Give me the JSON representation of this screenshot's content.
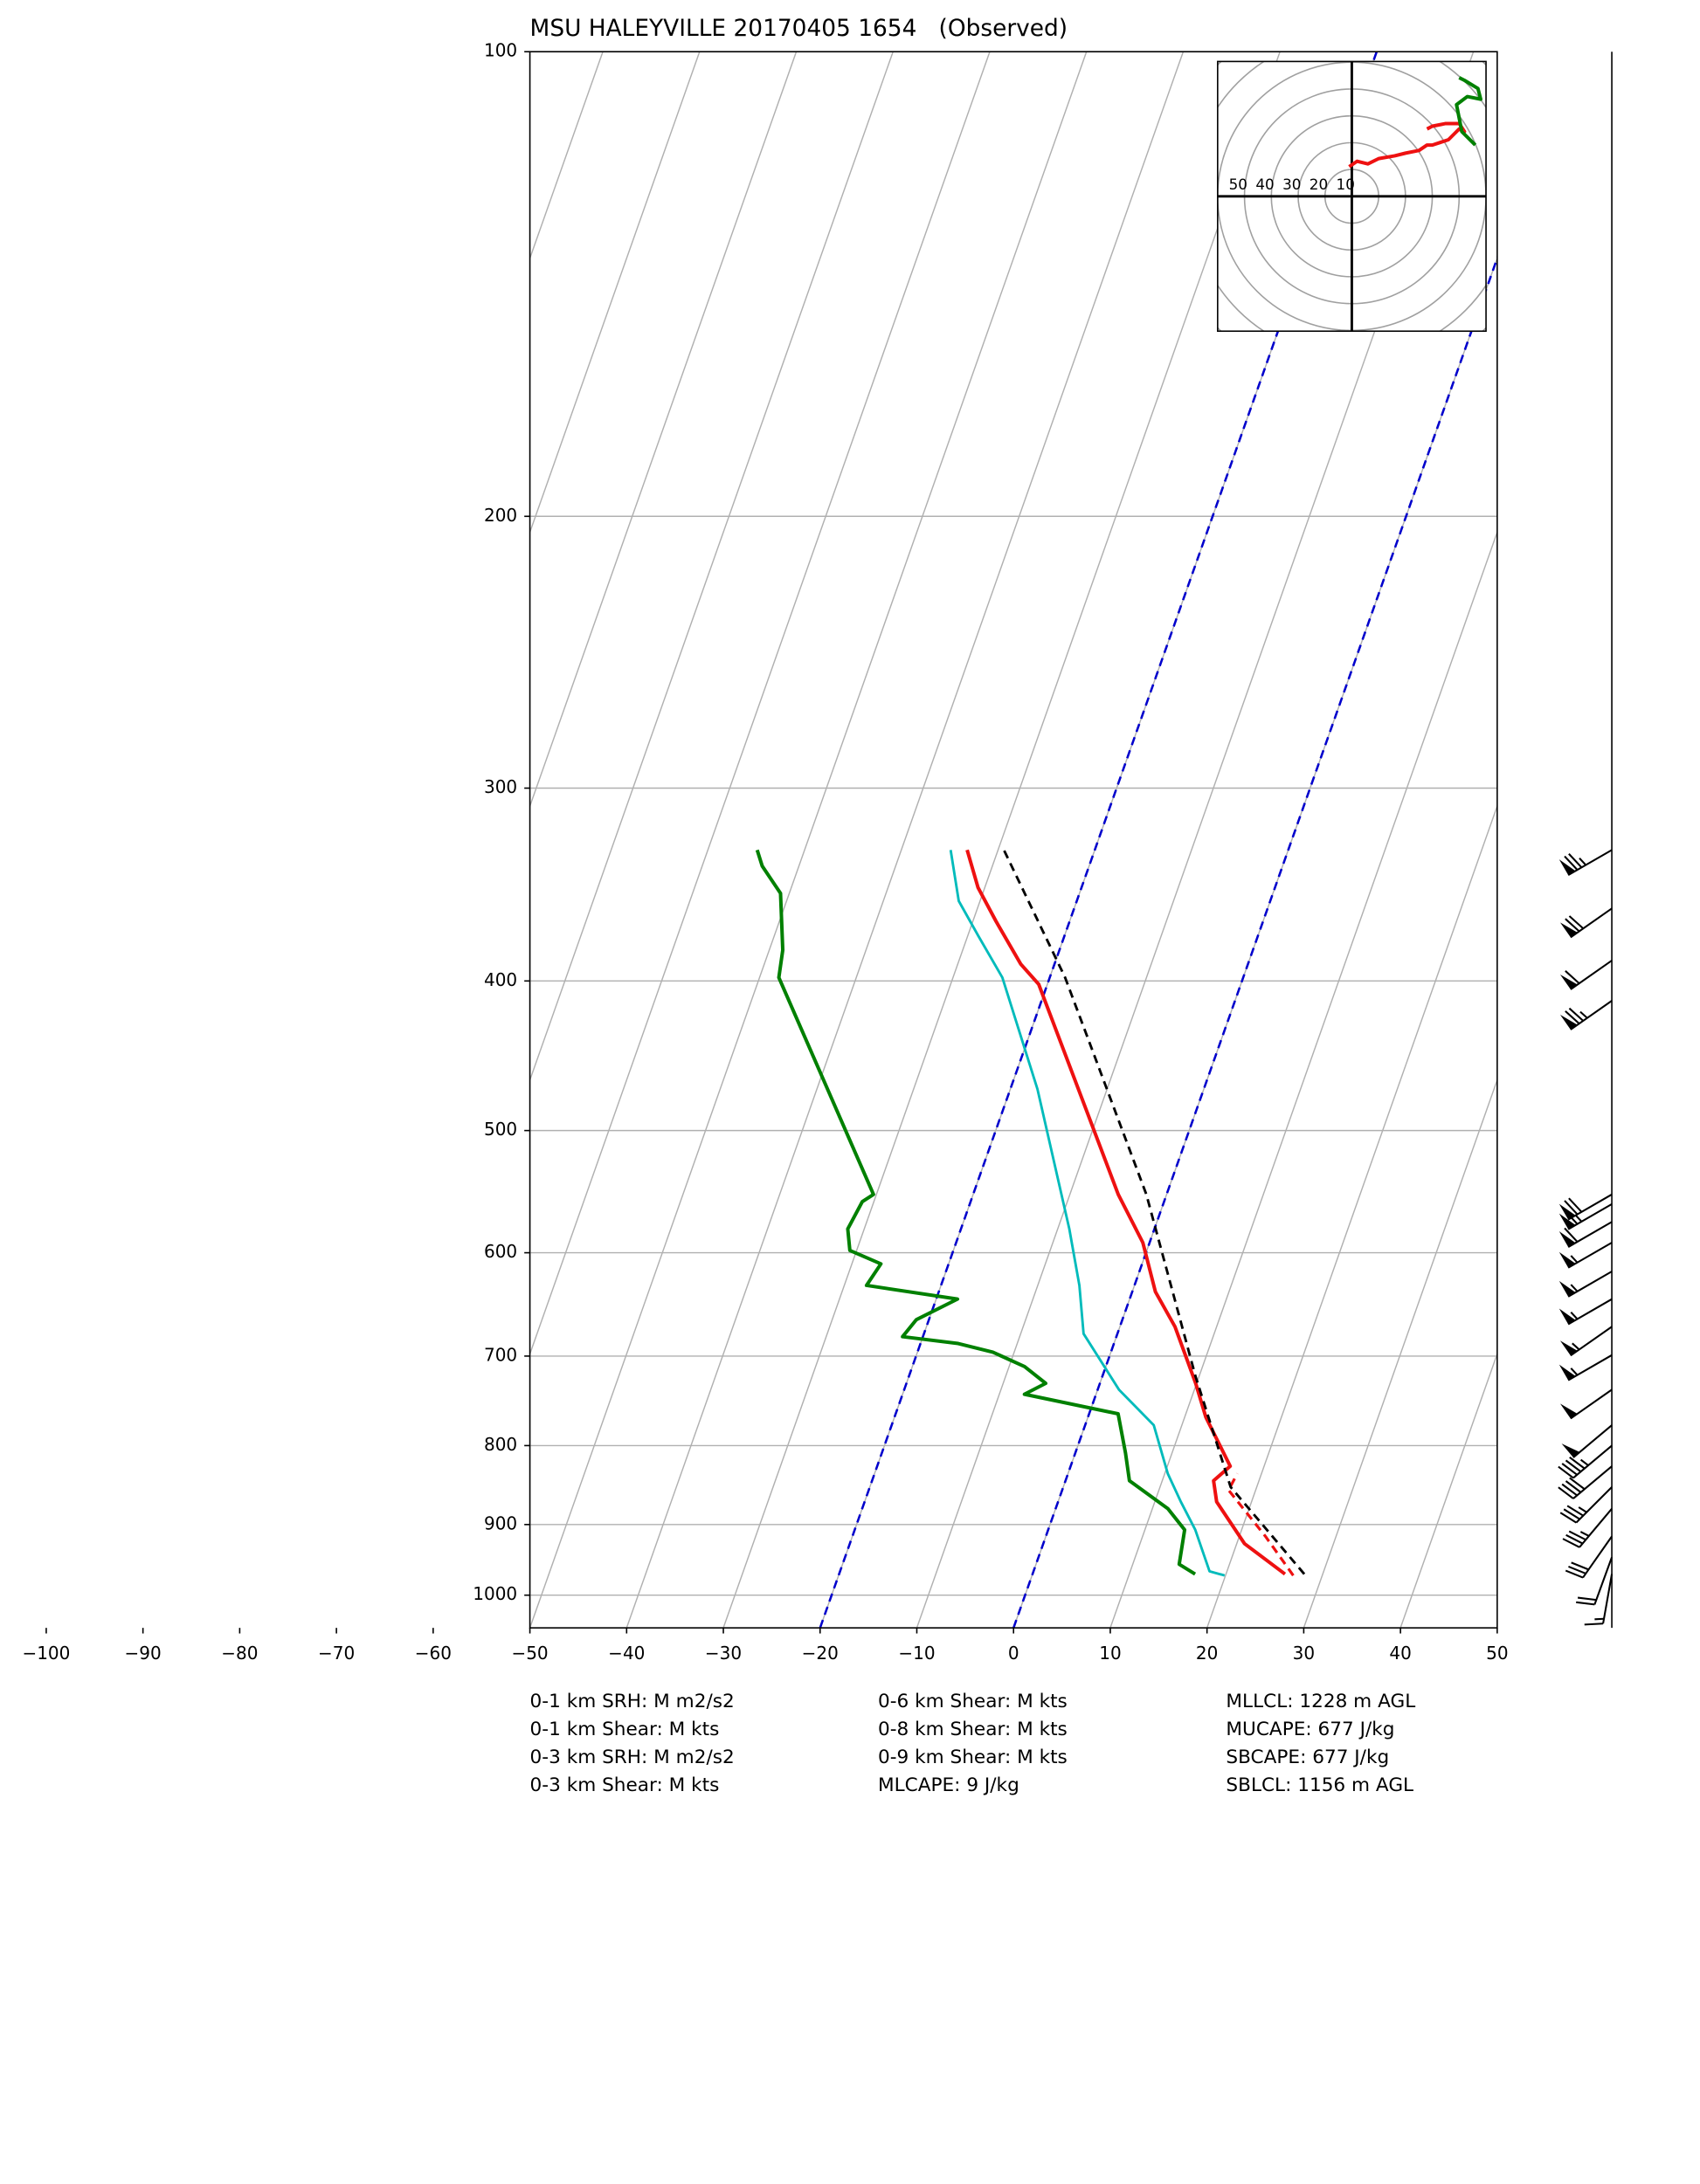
{
  "chart_data": {
    "type": "skewt",
    "title": "MSU HALEYVILLE 20170405 1654   (Observed)",
    "xlim": [
      -50,
      50
    ],
    "ylim": [
      1050,
      100
    ],
    "xticks": [
      {
        "value": -100,
        "label": "−100"
      },
      {
        "value": -90,
        "label": "−90"
      },
      {
        "value": -80,
        "label": "−80"
      },
      {
        "value": -70,
        "label": "−70"
      },
      {
        "value": -60,
        "label": "−60"
      },
      {
        "value": -50,
        "label": "−50"
      },
      {
        "value": -40,
        "label": "−40"
      },
      {
        "value": -30,
        "label": "−30"
      },
      {
        "value": -20,
        "label": "−20"
      },
      {
        "value": -10,
        "label": "−10"
      },
      0,
      10,
      20,
      30,
      40,
      50
    ],
    "yticks": [
      100,
      200,
      300,
      400,
      500,
      600,
      700,
      800,
      900,
      1000
    ],
    "grid": true,
    "highlight_isotherms": {
      "values": [
        -20,
        0
      ],
      "color": "#0000cc"
    },
    "profiles": [
      {
        "color": "#ee1111",
        "style": "solid",
        "width": 2.5,
        "pressure": [
          969,
          926,
          870,
          843,
          825,
          767,
          729,
          670,
          636,
          591,
          550,
          402,
          390,
          366,
          348,
          329
        ],
        "temperature": [
          26.1,
          20.8,
          16.4,
          15.3,
          16.5,
          12.2,
          9.9,
          5.7,
          2.4,
          -0.7,
          -5.0,
          -20.9,
          -23.5,
          -27.6,
          -30.7,
          -33.2
        ]
      },
      {
        "color": "#00bbbb",
        "style": "solid",
        "width": 1.8,
        "pressure": [
          971,
          965,
          907,
          870,
          834,
          776,
          736,
          677,
          630,
          579,
          470,
          398,
          374,
          355,
          329
        ],
        "temperature": [
          19.9,
          18.2,
          15.2,
          12.7,
          10.3,
          7.1,
          2.2,
          -3.5,
          -5.7,
          -8.8,
          -17.2,
          -24.9,
          -28.9,
          -32.2,
          -34.9
        ]
      },
      {
        "color": "#008000",
        "style": "solid",
        "width": 2.5,
        "pressure": [
          969,
          955,
          907,
          879,
          843,
          809,
          763,
          741,
          729,
          711,
          696,
          687,
          680,
          663,
          643,
          630,
          610,
          598,
          579,
          556,
          550,
          398,
          382,
          351,
          337,
          329
        ],
        "temperature": [
          16.8,
          14.8,
          14.1,
          11.6,
          6.6,
          5.2,
          3.0,
          -7.4,
          -5.6,
          -8.4,
          -12.2,
          -16.1,
          -22.1,
          -21.3,
          -17.8,
          -27.7,
          -27.0,
          -30.7,
          -31.7,
          -31.2,
          -30.3,
          -48.0,
          -48.6,
          -50.9,
          -53.8,
          -54.9
        ]
      },
      {
        "color": "#ee1111",
        "style": "dashed",
        "width": 2,
        "pressure": [
          971,
          916,
          855,
          834
        ],
        "temperature": [
          27.0,
          22.7,
          17.2,
          17.5
        ]
      },
      {
        "color": "#000000",
        "style": "dashed",
        "width": 1.8,
        "pressure": [
          969,
          851,
          721,
          550,
          398,
          329
        ],
        "temperature": [
          28.1,
          17.3,
          9.6,
          -2.1,
          -18.4,
          -29.4
        ]
      }
    ],
    "wind_barbs": {
      "pressure": [
        329,
        359,
        388,
        412,
        550,
        558,
        573,
        591,
        617,
        643,
        670,
        699,
        736,
        776,
        800,
        825,
        851,
        879,
        916,
        945,
        969
      ],
      "speed": [
        75,
        70,
        60,
        75,
        70,
        65,
        60,
        55,
        55,
        55,
        55,
        55,
        50,
        50,
        45,
        40,
        35,
        35,
        30,
        20,
        15
      ],
      "direction": [
        240,
        235,
        235,
        235,
        240,
        240,
        240,
        240,
        240,
        240,
        235,
        240,
        235,
        230,
        230,
        230,
        225,
        220,
        215,
        200,
        190
      ]
    },
    "hodograph": {
      "xlim": [
        -50,
        50
      ],
      "ylim": [
        -50,
        50
      ],
      "rings": [
        10,
        20,
        30,
        40,
        50,
        60,
        70
      ],
      "ring_labels": [
        50,
        40,
        30,
        20,
        10
      ],
      "segments": [
        {
          "color": "#ee1111",
          "u": [
            -1,
            2,
            6,
            10,
            16,
            20,
            25,
            28,
            30,
            33,
            36,
            38,
            40,
            42,
            40,
            35,
            30,
            28
          ],
          "v": [
            11,
            13,
            12,
            14,
            15,
            16,
            17,
            19,
            19,
            20,
            21,
            23,
            25,
            24,
            27,
            27,
            26,
            25
          ]
        },
        {
          "color": "#008000",
          "u": [
            46,
            41,
            39,
            43,
            48,
            47,
            42,
            40
          ],
          "v": [
            19,
            24,
            34,
            37,
            36,
            40,
            43,
            44
          ]
        }
      ]
    },
    "stats": [
      [
        "0-1 km SRH: M m2/s2",
        "0-1 km Shear: M kts",
        "0-3 km SRH: M m2/s2",
        "0-3 km Shear: M kts"
      ],
      [
        "0-6 km Shear: M kts",
        "0-8 km Shear: M kts",
        "0-9 km Shear: M kts",
        "MLCAPE: 9 J/kg"
      ],
      [
        "MLLCL: 1228 m AGL",
        "MUCAPE: 677 J/kg",
        "SBCAPE: 677 J/kg",
        "SBLCL: 1156 m AGL"
      ]
    ]
  }
}
